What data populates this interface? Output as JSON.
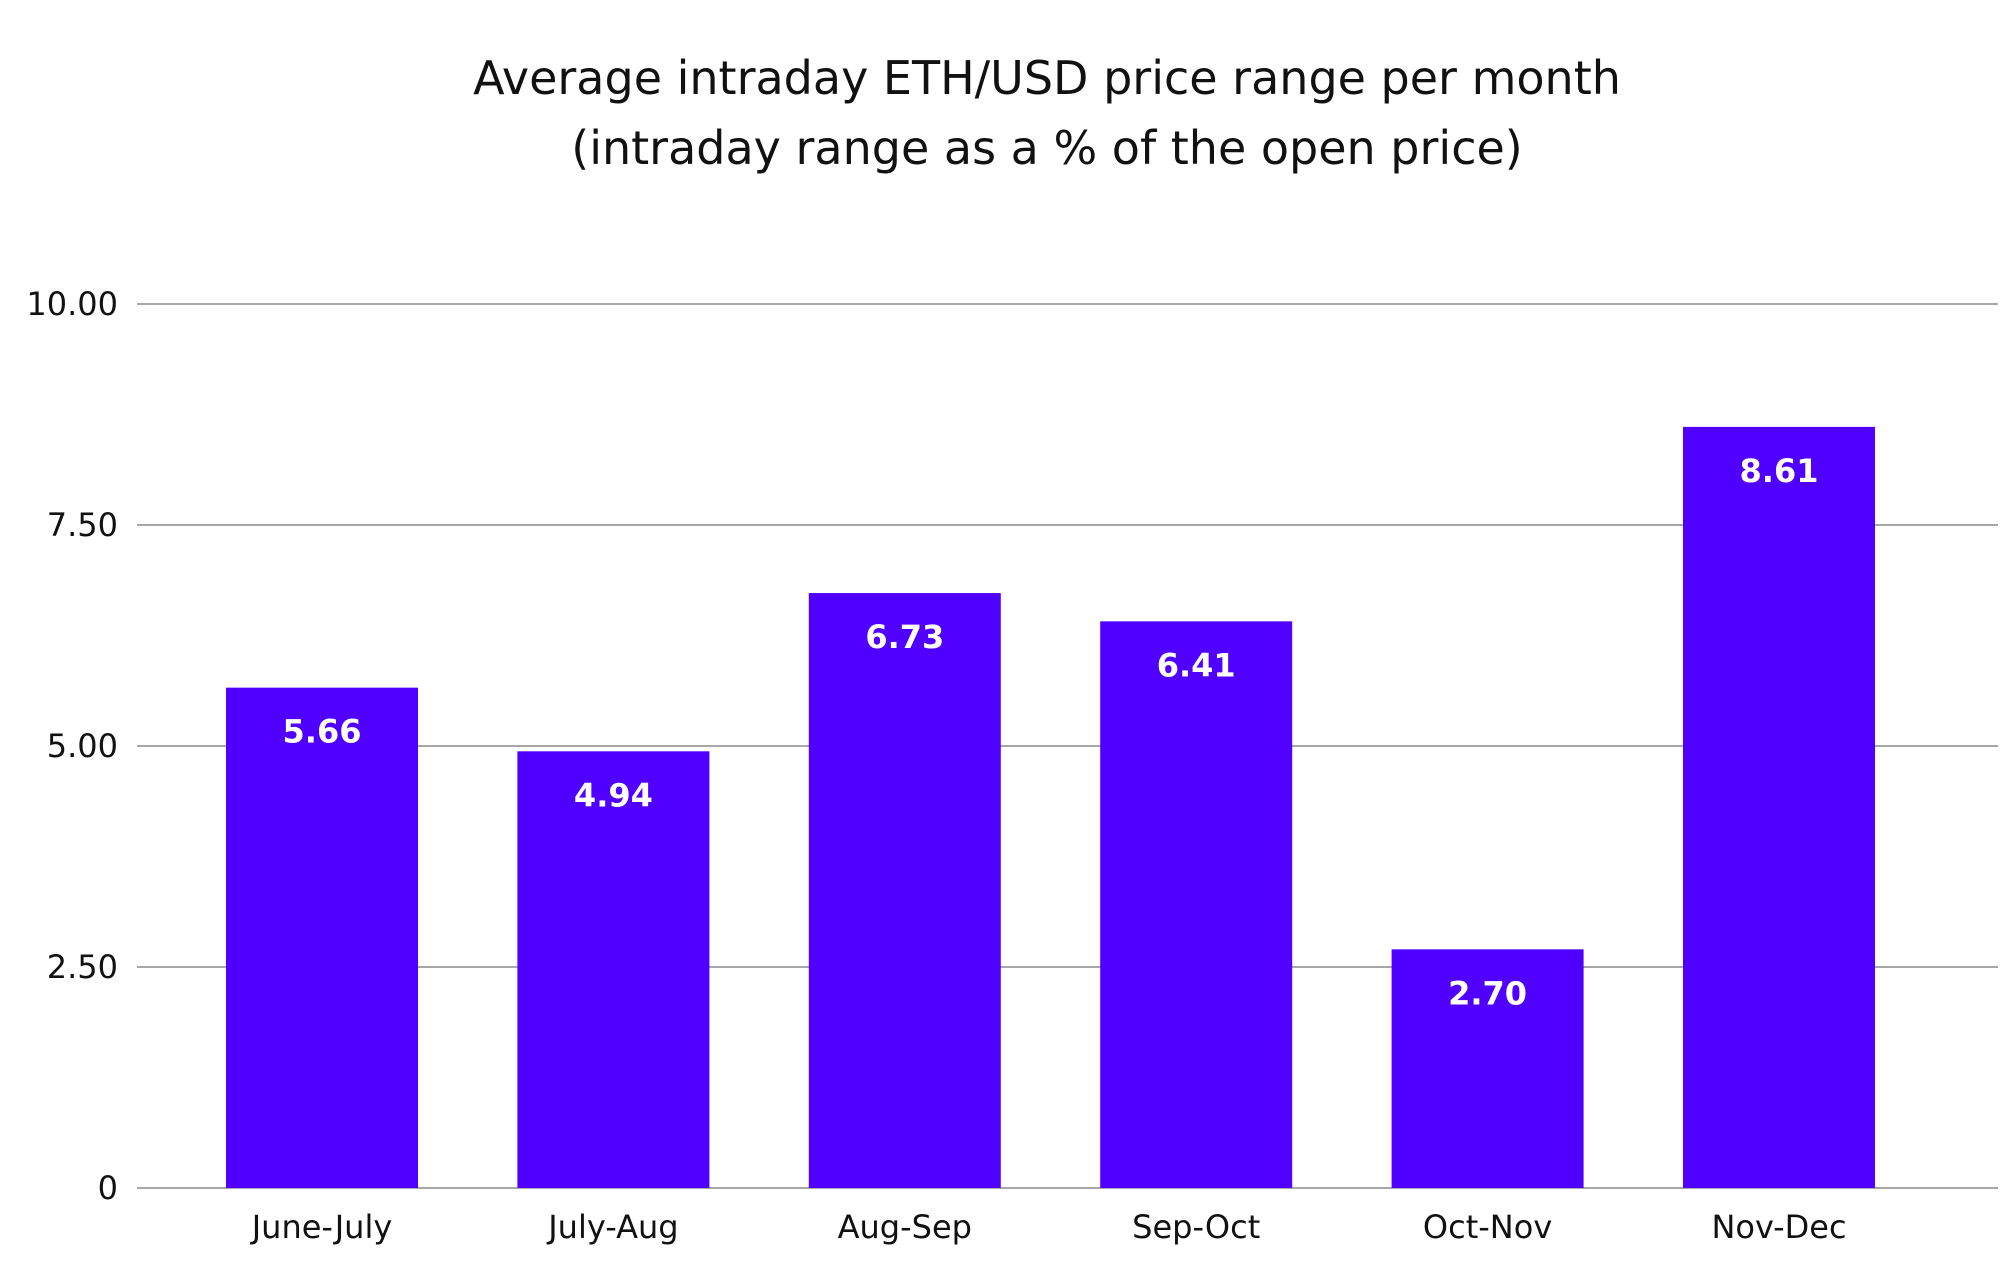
{
  "chart_data": {
    "type": "bar",
    "title": "Average intraday ETH/USD price range per month",
    "subtitle": "(intraday range as a % of the open price)",
    "xlabel": "",
    "ylabel": "",
    "categories": [
      "June-July",
      "July-Aug",
      "Aug-Sep",
      "Sep-Oct",
      "Oct-Nov",
      "Nov-Dec"
    ],
    "values": [
      5.66,
      4.94,
      6.73,
      6.41,
      2.7,
      8.61
    ],
    "value_labels": [
      "5.66",
      "4.94",
      "6.73",
      "6.41",
      "2.70",
      "8.61"
    ],
    "ylim": [
      0,
      10
    ],
    "yticks": [
      0,
      2.5,
      5,
      7.5,
      10
    ],
    "ytick_labels": [
      "0",
      "2.50",
      "5.00",
      "7.50",
      "10.00"
    ],
    "grid": true,
    "legend": "none",
    "bar_color": "#5000ff",
    "label_color": "#ffffff"
  }
}
